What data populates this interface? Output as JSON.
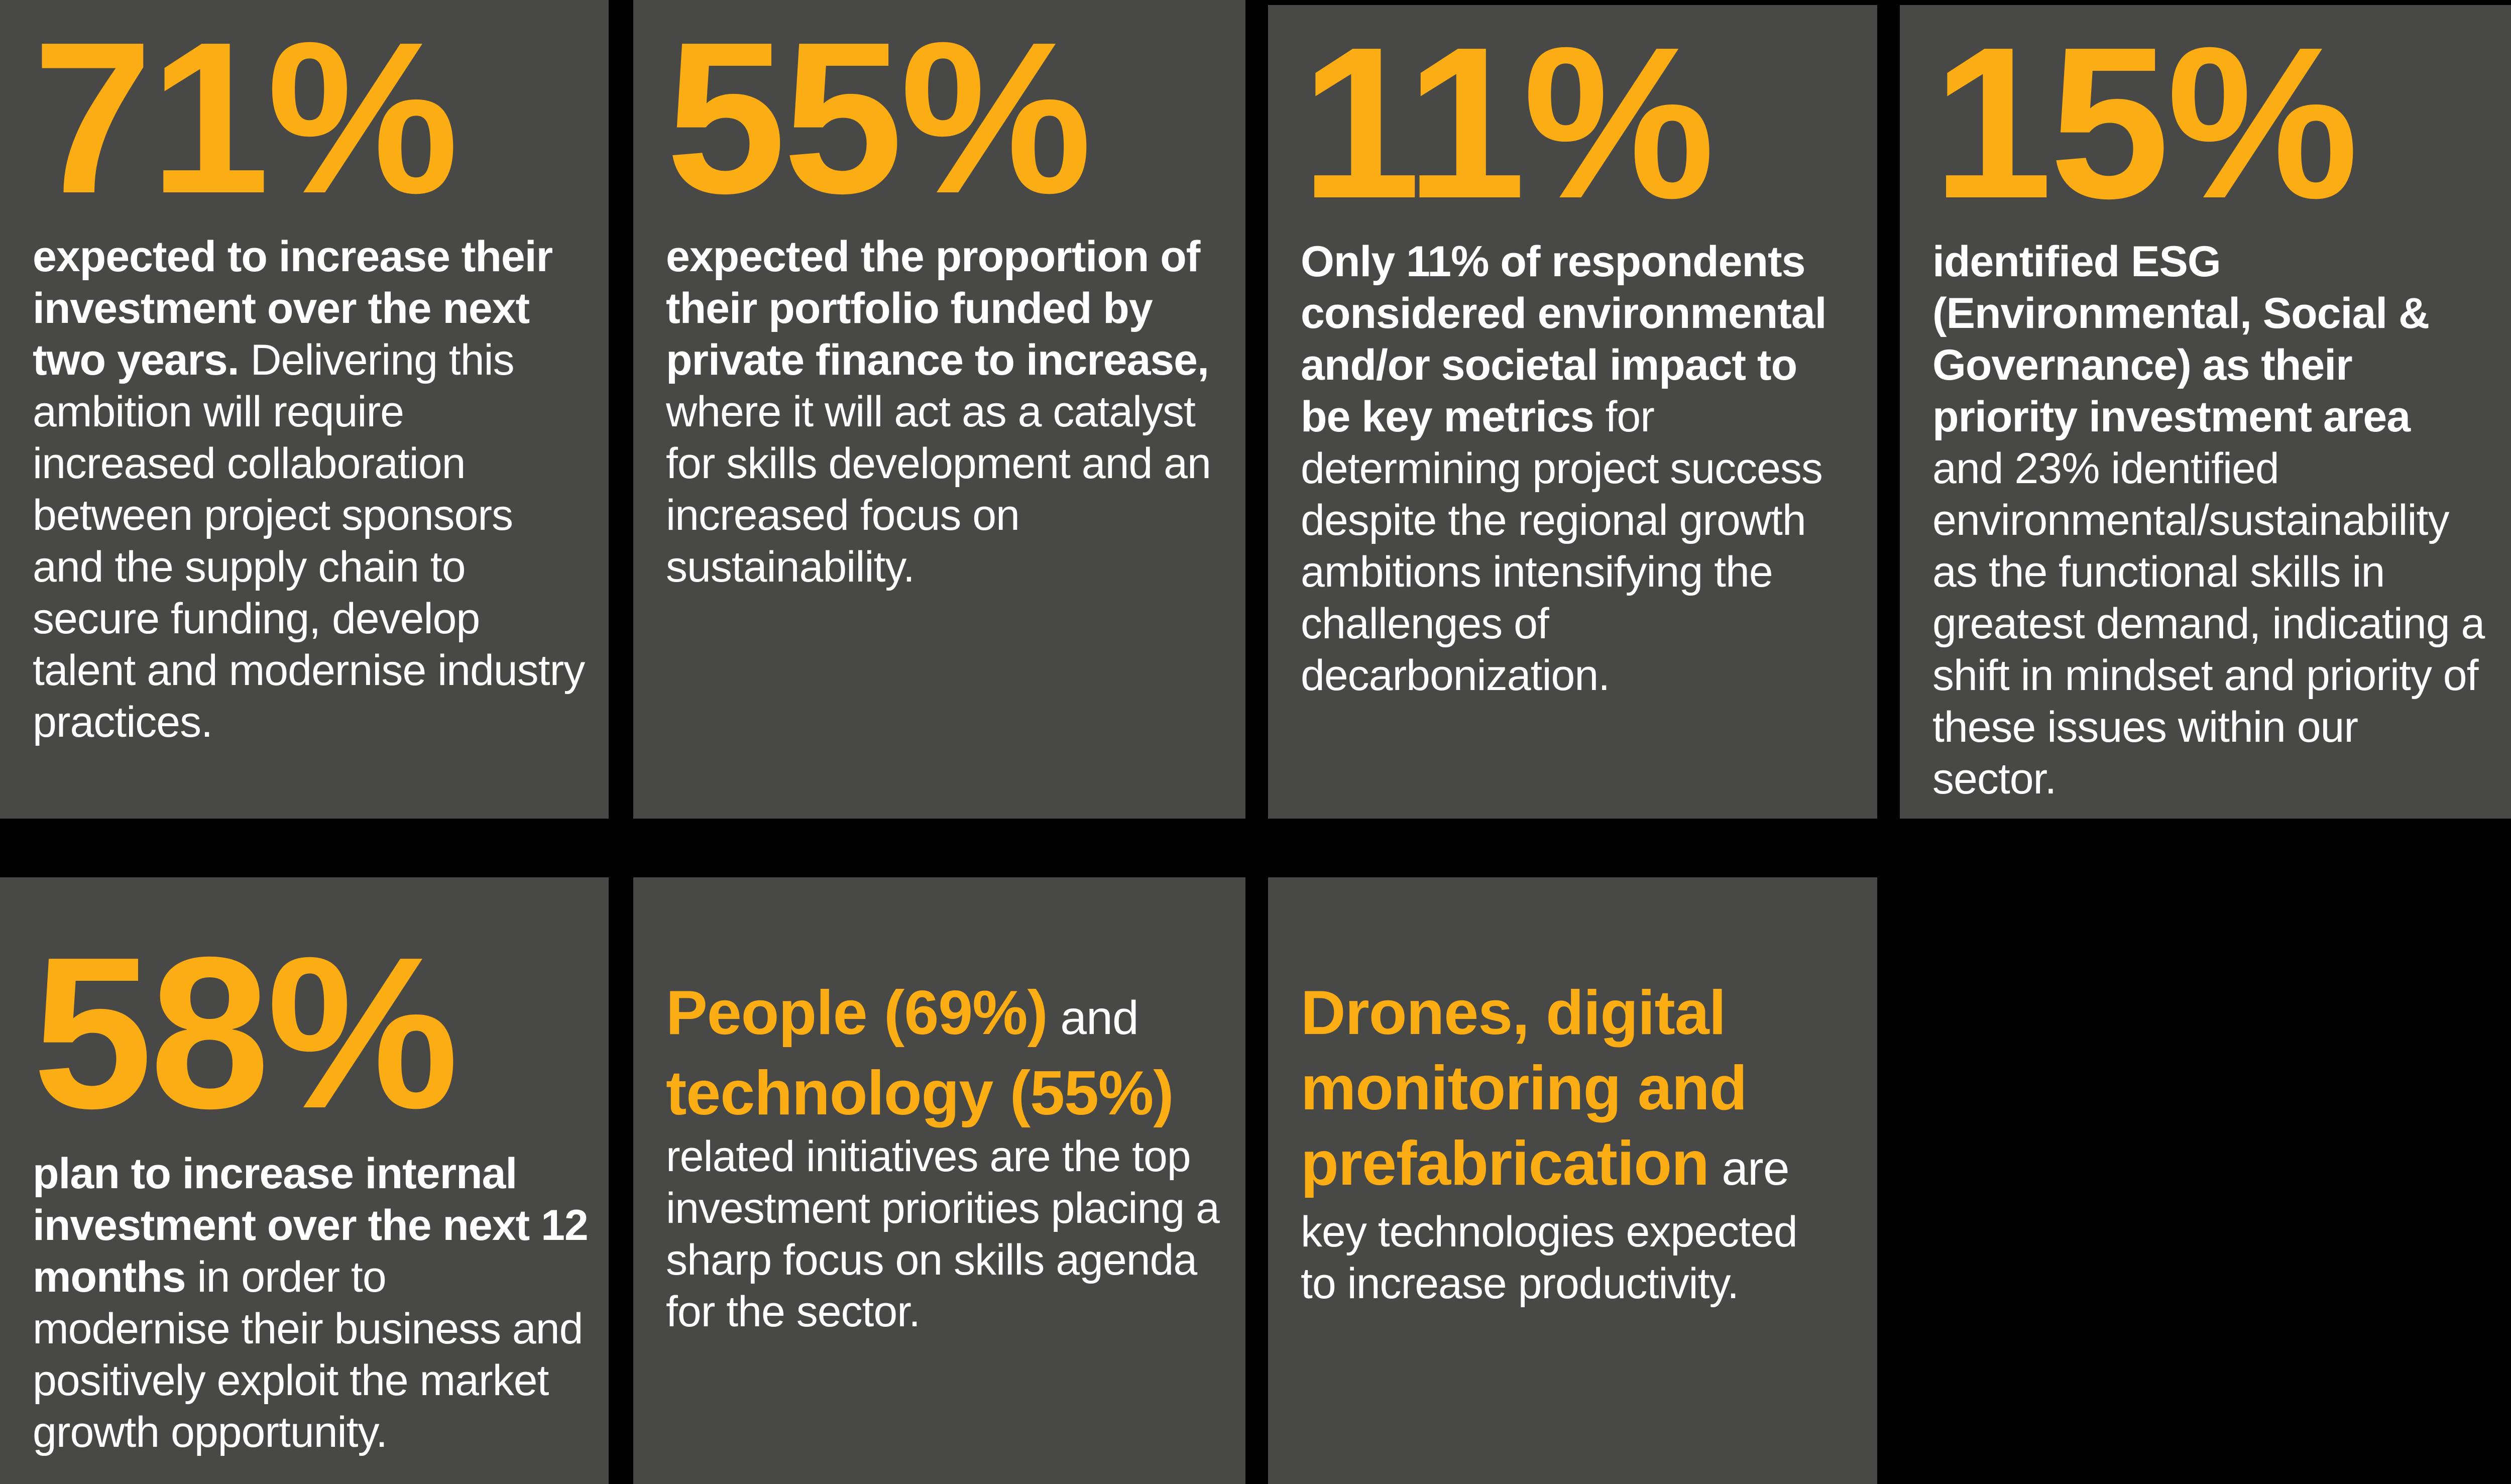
{
  "colors": {
    "background": "#000000",
    "card_bg": "#484847",
    "accent_yellow": "#FCAD13",
    "text_white": "#FFFFFF"
  },
  "cards": [
    {
      "name": "stat-card-71",
      "stat": "71%",
      "segments": [
        {
          "s": "lead",
          "t": "expected to increase their investment over the next two years."
        },
        {
          "s": "body",
          "t": " Delivering this ambition will require increased collaboration between project sponsors and the supply chain to secure funding, develop talent and modernise industry practices."
        }
      ]
    },
    {
      "name": "stat-card-55",
      "stat": "55%",
      "segments": [
        {
          "s": "lead",
          "t": "expected the proportion of their portfolio funded by private finance to increase,"
        },
        {
          "s": "body",
          "t": " where it will act as a catalyst for skills development and an increased focus on sustainability."
        }
      ]
    },
    {
      "name": "stat-card-11",
      "stat": "11%",
      "segments": [
        {
          "s": "lead",
          "t": "Only 11% of respondents considered environmental and/or societal impact to be key metrics"
        },
        {
          "s": "body",
          "t": " for determining project success despite the regional growth ambitions intensifying the challenges of decarbonization."
        }
      ]
    },
    {
      "name": "stat-card-15",
      "stat": "15%",
      "segments": [
        {
          "s": "lead",
          "t": "identified ESG (Environmental, Social & Governance) as their priority investment area"
        },
        {
          "s": "body",
          "t": " and 23% identified environmental/sustainability as the functional skills in greatest demand, indicating a shift in mindset and priority of these issues within our sector."
        }
      ]
    },
    {
      "name": "stat-card-58",
      "stat": "58%",
      "segments": [
        {
          "s": "lead",
          "t": "plan to increase internal investment over the next 12 months"
        },
        {
          "s": "body",
          "t": " in order to modernise their business and positively exploit the market growth opportunity."
        }
      ]
    },
    {
      "name": "card-people-technology",
      "stat": null,
      "segments": [
        {
          "s": "accent",
          "t": "People (69%)"
        },
        {
          "s": "link",
          "t": " and "
        },
        {
          "s": "accent",
          "t": "technology (55%)"
        },
        {
          "s": "body",
          "t": " related initiatives are the top investment priorities placing a sharp focus on skills agenda for the sector."
        }
      ]
    },
    {
      "name": "card-drones-technologies",
      "stat": null,
      "segments": [
        {
          "s": "accent",
          "t": "Drones, digital monitoring and prefabrication"
        },
        {
          "s": "link",
          "t": " are "
        },
        {
          "s": "body",
          "t": "key technologies expected to increase productivity."
        }
      ]
    }
  ]
}
